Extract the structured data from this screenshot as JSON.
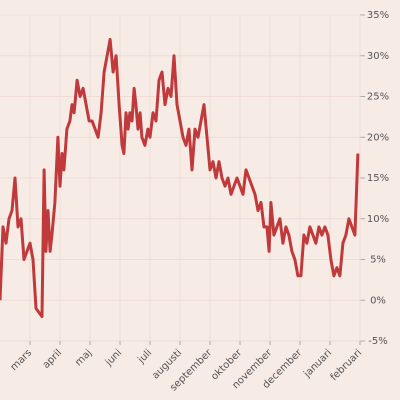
{
  "chart_data": {
    "type": "line",
    "x": [
      0,
      0.1,
      0.2,
      0.3,
      0.4,
      0.5,
      0.6,
      0.7,
      0.8,
      0.9,
      1.0,
      1.1,
      1.2,
      1.3,
      1.4,
      1.47,
      1.53,
      1.6,
      1.67,
      1.73,
      1.83,
      1.93,
      2,
      2.07,
      2.13,
      2.23,
      2.33,
      2.4,
      2.47,
      2.57,
      2.67,
      2.77,
      2.87,
      2.97,
      3.07,
      3.17,
      3.27,
      3.37,
      3.47,
      3.57,
      3.67,
      3.77,
      3.87,
      3.97,
      4.07,
      4.13,
      4.2,
      4.27,
      4.33,
      4.4,
      4.47,
      4.53,
      4.6,
      4.67,
      4.73,
      4.83,
      4.93,
      5,
      5.1,
      5.2,
      5.3,
      5.4,
      5.5,
      5.6,
      5.7,
      5.8,
      5.9,
      6,
      6.1,
      6.2,
      6.3,
      6.4,
      6.5,
      6.6,
      6.7,
      6.8,
      6.9,
      7,
      7.1,
      7.2,
      7.3,
      7.4,
      7.5,
      7.6,
      7.7,
      7.8,
      7.9,
      8,
      8.1,
      8.2,
      8.3,
      8.4,
      8.5,
      8.6,
      8.7,
      8.8,
      8.9,
      8.97,
      9.03,
      9.13,
      9.23,
      9.33,
      9.43,
      9.53,
      9.63,
      9.73,
      9.83,
      9.93,
      10.03,
      10.13,
      10.23,
      10.33,
      10.43,
      10.53,
      10.63,
      10.73,
      10.83,
      10.93,
      11.03,
      11.13,
      11.23,
      11.33,
      11.43,
      11.53,
      11.63,
      11.73,
      11.83,
      11.93
    ],
    "series": [
      {
        "color": "#c0393b",
        "values": [
          0,
          9,
          7,
          10,
          11,
          15,
          9,
          10,
          5,
          6,
          7,
          5,
          -1,
          -1.5,
          -2,
          16,
          6,
          11,
          6,
          8,
          12,
          20,
          14,
          18,
          16,
          21,
          22,
          24,
          23,
          27,
          25,
          26,
          24,
          22,
          22,
          21,
          20,
          23,
          28,
          30,
          32,
          28,
          30,
          24,
          19,
          18,
          23,
          21,
          23,
          22,
          26,
          24,
          21,
          23,
          20,
          19,
          21,
          20,
          23,
          22,
          27,
          28,
          24,
          26,
          25,
          30,
          24,
          22,
          20,
          19,
          21,
          16,
          21,
          20,
          22,
          24,
          20,
          16,
          17,
          15,
          17,
          15,
          14,
          15,
          13,
          14,
          15,
          14,
          13,
          16,
          15,
          14,
          13,
          11,
          12,
          9,
          9,
          6,
          12,
          8,
          9,
          10,
          7,
          9,
          8,
          6,
          5,
          3,
          3,
          8,
          7,
          9,
          8,
          7,
          9,
          8,
          9,
          8,
          5,
          3,
          4,
          3,
          7,
          8,
          10,
          9,
          8,
          18
        ]
      }
    ],
    "xlim": [
      0,
      12
    ],
    "xticks": [
      {
        "value": 1,
        "label": "mars"
      },
      {
        "value": 2,
        "label": "april"
      },
      {
        "value": 3,
        "label": "maj"
      },
      {
        "value": 4,
        "label": "juni"
      },
      {
        "value": 5,
        "label": "juli"
      },
      {
        "value": 6,
        "label": "augusti"
      },
      {
        "value": 7,
        "label": "september"
      },
      {
        "value": 8,
        "label": "oktober"
      },
      {
        "value": 9,
        "label": "november"
      },
      {
        "value": 10,
        "label": "december"
      },
      {
        "value": 11,
        "label": "januari"
      },
      {
        "value": 12,
        "label": "februari"
      }
    ],
    "ylim": [
      -5,
      35
    ],
    "yticks": [
      {
        "value": -5,
        "label": "-5%"
      },
      {
        "value": 0,
        "label": "0%"
      },
      {
        "value": 5,
        "label": "5%"
      },
      {
        "value": 10,
        "label": "10%"
      },
      {
        "value": 15,
        "label": "15%"
      },
      {
        "value": 20,
        "label": "20%"
      },
      {
        "value": 25,
        "label": "25%"
      },
      {
        "value": 30,
        "label": "30%"
      },
      {
        "value": 35,
        "label": "35%"
      }
    ],
    "grid": true
  }
}
